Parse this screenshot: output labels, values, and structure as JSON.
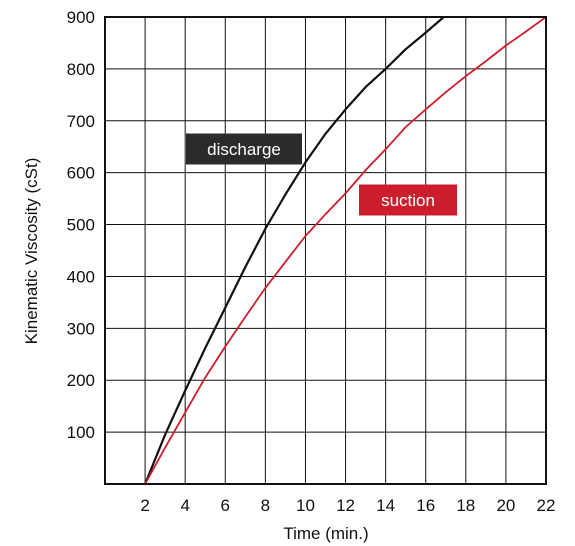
{
  "chart_data": {
    "type": "line",
    "xlabel": "Time (min.)",
    "ylabel": "Kinematic Viscosity (cSt)",
    "xlim": [
      0,
      22
    ],
    "ylim": [
      0,
      900
    ],
    "x_ticks": [
      2,
      4,
      6,
      8,
      10,
      12,
      14,
      16,
      18,
      20,
      22
    ],
    "y_ticks": [
      100,
      200,
      300,
      400,
      500,
      600,
      700,
      800,
      900
    ],
    "grid": true,
    "series": [
      {
        "name": "discharge",
        "color": "#111111",
        "label_bg": "#2b2b2b",
        "x": [
          2,
          3,
          4,
          5,
          6,
          7,
          8,
          9,
          10,
          11,
          12,
          13,
          14,
          15,
          16,
          16.9
        ],
        "y": [
          0,
          95,
          180,
          262,
          340,
          418,
          492,
          558,
          620,
          675,
          722,
          765,
          800,
          838,
          870,
          900
        ]
      },
      {
        "name": "suction",
        "color": "#cc1f2d",
        "label_bg": "#cc1f2d",
        "x": [
          2,
          3,
          4,
          5,
          6,
          7,
          8,
          9,
          10,
          11,
          12,
          13,
          14,
          15,
          16,
          17,
          18,
          19,
          20,
          21,
          22
        ],
        "y": [
          0,
          70,
          138,
          205,
          265,
          322,
          378,
          428,
          478,
          520,
          560,
          605,
          645,
          688,
          722,
          755,
          786,
          815,
          845,
          872,
          900
        ]
      }
    ]
  }
}
